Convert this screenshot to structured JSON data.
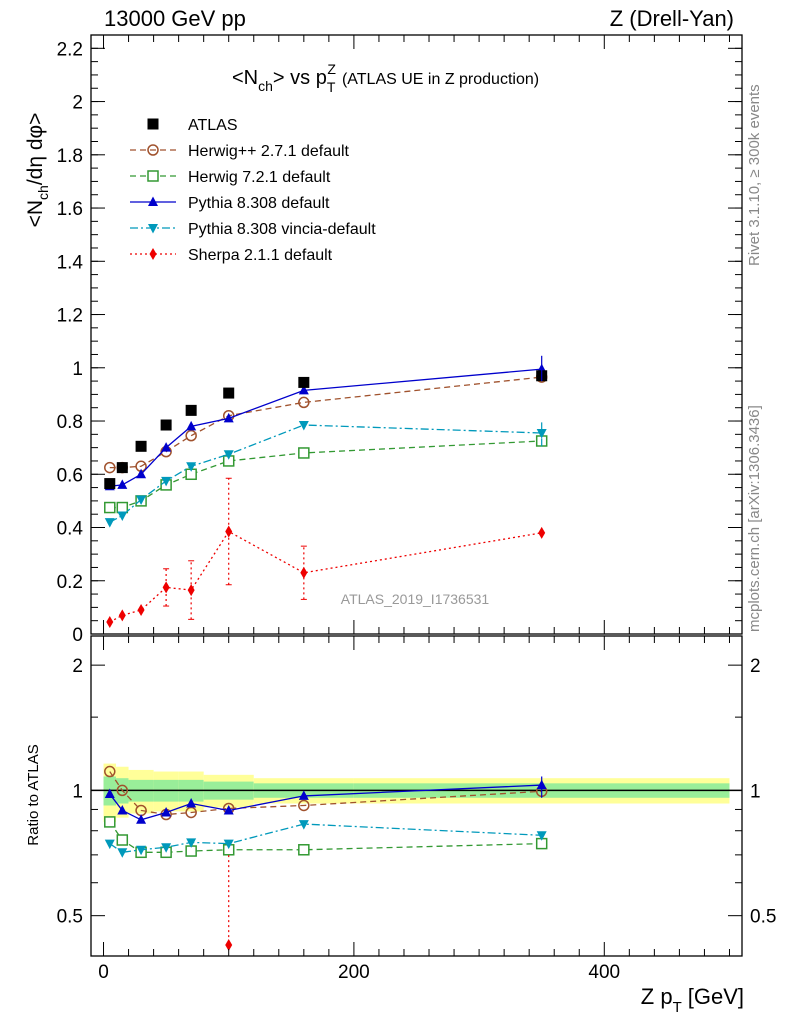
{
  "header": {
    "energy_label": "13000 GeV pp",
    "process_label": "Z (Drell-Yan)"
  },
  "side_labels": {
    "rivet": "Rivet 3.1.10, ≥ 300k events",
    "mcplots": "mcplots.cern.ch [arXiv:1306.3436]"
  },
  "chart_data": {
    "type": "line",
    "title": "<N_ch> vs p_T^Z (ATLAS UE in Z production)",
    "title_main": "<N",
    "title_main_sub": "ch",
    "title_vs": "> vs p",
    "title_p_sub": "T",
    "title_p_sup": "Z",
    "title_suffix": "(ATLAS UE in Z production)",
    "analysis_label": "ATLAS_2019_I1736531",
    "ylabel": "<N_ch/dη dφ>",
    "ylabel_main": "<N",
    "ylabel_sub": "ch",
    "ylabel_rest": "/dη dφ>",
    "ratio_ylabel": "Ratio to ATLAS",
    "xlabel": "Z p_T [GeV]",
    "xlabel_main": "Z p",
    "xlabel_sub": "T",
    "xlabel_unit": "[GeV]",
    "xlim": [
      -10,
      510
    ],
    "ylim": [
      0,
      2.25
    ],
    "ratio_ylim": [
      0.4,
      2.35
    ],
    "ratio_log": true,
    "x_ticks": [
      "0",
      "200",
      "400"
    ],
    "y_ticks": [
      "0",
      "0.2",
      "0.4",
      "0.6",
      "0.8",
      "1",
      "1.2",
      "1.4",
      "1.6",
      "1.8",
      "2",
      "2.2"
    ],
    "ratio_ticks": [
      "0.5",
      "1",
      "2"
    ],
    "legend_position": "top-left",
    "x": [
      5,
      15,
      30,
      50,
      70,
      100,
      160,
      350
    ],
    "series": [
      {
        "name": "ATLAS",
        "color": "#000000",
        "marker": "square-filled",
        "line": "none",
        "values": [
          0.565,
          0.625,
          0.705,
          0.785,
          0.84,
          0.905,
          0.945,
          0.97
        ]
      },
      {
        "name": "Herwig++ 2.7.1 default",
        "color": "#a0522d",
        "marker": "circle-open",
        "line": "dashed",
        "values": [
          0.625,
          0.625,
          0.63,
          0.685,
          0.745,
          0.82,
          0.87,
          0.965
        ]
      },
      {
        "name": "Herwig 7.2.1 default",
        "color": "#339933",
        "marker": "square-open",
        "line": "dashed",
        "values": [
          0.475,
          0.475,
          0.5,
          0.56,
          0.6,
          0.65,
          0.68,
          0.725
        ]
      },
      {
        "name": "Pythia 8.308 default",
        "color": "#0000cc",
        "marker": "triangle-up",
        "line": "solid",
        "values": [
          0.555,
          0.56,
          0.6,
          0.7,
          0.78,
          0.81,
          0.915,
          0.995
        ]
      },
      {
        "name": "Pythia 8.308 vincia-default",
        "color": "#0099bb",
        "marker": "triangle-down",
        "line": "dashdot",
        "values": [
          0.42,
          0.445,
          0.505,
          0.575,
          0.63,
          0.675,
          0.785,
          0.755
        ]
      },
      {
        "name": "Sherpa 2.1.1 default",
        "color": "#ee0000",
        "marker": "diamond",
        "line": "dotted",
        "values": [
          0.045,
          0.07,
          0.09,
          0.175,
          0.165,
          0.385,
          0.23,
          0.38
        ]
      }
    ],
    "ratio_series": [
      {
        "name": "Herwig++ 2.7.1 default",
        "values": [
          1.11,
          1.0,
          0.895,
          0.875,
          0.885,
          0.905,
          0.92,
          0.995
        ]
      },
      {
        "name": "Herwig 7.2.1 default",
        "values": [
          0.84,
          0.76,
          0.71,
          0.71,
          0.715,
          0.72,
          0.72,
          0.745
        ]
      },
      {
        "name": "Pythia 8.308 default",
        "values": [
          0.98,
          0.895,
          0.85,
          0.885,
          0.93,
          0.895,
          0.97,
          1.03
        ]
      },
      {
        "name": "Pythia 8.308 vincia-default",
        "values": [
          0.745,
          0.71,
          0.72,
          0.73,
          0.75,
          0.745,
          0.83,
          0.78
        ]
      },
      {
        "name": "Sherpa 2.1.1 default",
        "values": [
          null,
          null,
          null,
          null,
          null,
          0.425,
          null,
          null
        ]
      }
    ],
    "ratio_bands": {
      "edges": [
        0,
        10,
        20,
        40,
        60,
        80,
        120,
        200,
        500
      ],
      "inner": [
        0.08,
        0.07,
        0.06,
        0.06,
        0.06,
        0.05,
        0.04,
        0.04
      ],
      "outer": [
        0.16,
        0.14,
        0.12,
        0.11,
        0.11,
        0.09,
        0.07,
        0.07
      ]
    }
  }
}
